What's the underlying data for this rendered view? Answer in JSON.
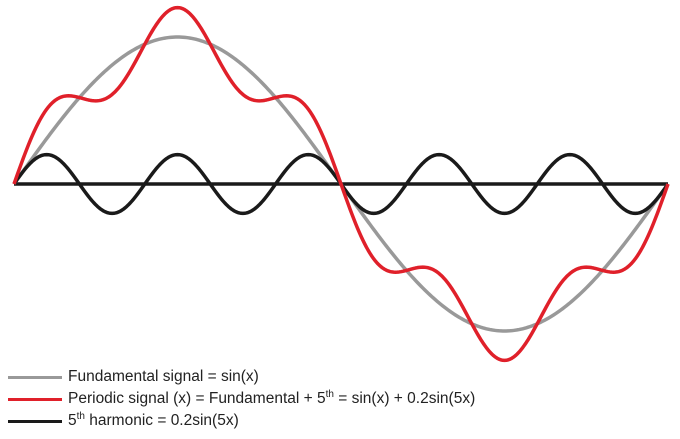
{
  "chart_data": {
    "type": "line",
    "x_range": [
      0,
      6.283185
    ],
    "ylim": [
      -1.2,
      1.2
    ],
    "samples": 361,
    "grid": false,
    "legend_position": "bottom-left",
    "series": [
      {
        "key": "fundamental",
        "formula": "sin(x)",
        "color": "#999999"
      },
      {
        "key": "harmonic",
        "formula": "0.2sin(5x)",
        "color": "#1a1a1a"
      },
      {
        "key": "periodic",
        "formula": "sin(x) + 0.2sin(5x)",
        "color": "#e0202a"
      }
    ],
    "legend": [
      {
        "color": "#999999",
        "before": "Fundamental signal = sin(x)",
        "sup": "",
        "after": ""
      },
      {
        "color": "#e0202a",
        "before": "Periodic signal (x) = Fundamental + 5",
        "sup": "th",
        "after": " = sin(x) + 0.2sin(5x)"
      },
      {
        "color": "#1a1a1a",
        "before": "5",
        "sup": "th",
        "after": " harmonic = 0.2sin(5x)"
      }
    ]
  }
}
